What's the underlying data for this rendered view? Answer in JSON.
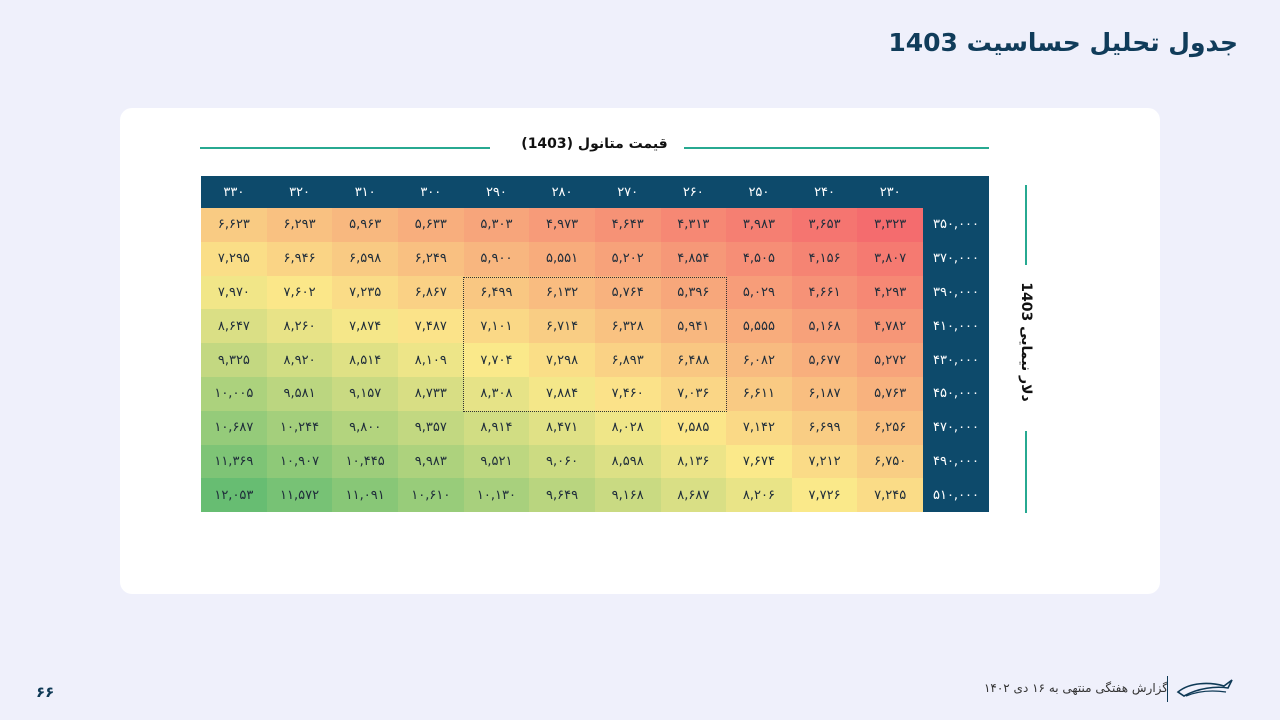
{
  "page": {
    "title": "جدول تحلیل حساسیت 1403",
    "page_number": "۶۶",
    "footer_text": "گزارش هفتگی منتهی به ۱۶ دی ۱۴۰۲"
  },
  "axes": {
    "top_label": "قیمت متانول (1403)",
    "side_label": "دلار نیمایی 1403"
  },
  "colors": {
    "header_bg": "#0d4a6b",
    "accent_line": "#27a991",
    "low": "#f46c6e",
    "mid": "#fbe98a",
    "high": "#67bd72"
  },
  "chart_data": {
    "type": "table",
    "columns": [
      "۲۳۰",
      "۲۴۰",
      "۲۵۰",
      "۲۶۰",
      "۲۷۰",
      "۲۸۰",
      "۲۹۰",
      "۳۰۰",
      "۳۱۰",
      "۳۲۰",
      "۳۳۰"
    ],
    "rows": [
      {
        "label": "۳۵۰,۰۰۰",
        "cells": [
          "۳,۳۲۳",
          "۳,۶۵۳",
          "۳,۹۸۳",
          "۴,۳۱۳",
          "۴,۶۴۳",
          "۴,۹۷۳",
          "۵,۳۰۳",
          "۵,۶۳۳",
          "۵,۹۶۳",
          "۶,۲۹۳",
          "۶,۶۲۳"
        ],
        "values": [
          3323,
          3653,
          3983,
          4313,
          4643,
          4973,
          5303,
          5633,
          5963,
          6293,
          6623
        ]
      },
      {
        "label": "۳۷۰,۰۰۰",
        "cells": [
          "۳,۸۰۷",
          "۴,۱۵۶",
          "۴,۵۰۵",
          "۴,۸۵۴",
          "۵,۲۰۲",
          "۵,۵۵۱",
          "۵,۹۰۰",
          "۶,۲۴۹",
          "۶,۵۹۸",
          "۶,۹۴۶",
          "۷,۲۹۵"
        ],
        "values": [
          3807,
          4156,
          4505,
          4854,
          5202,
          5551,
          5900,
          6249,
          6598,
          6946,
          7295
        ]
      },
      {
        "label": "۳۹۰,۰۰۰",
        "cells": [
          "۴,۲۹۳",
          "۴,۶۶۱",
          "۵,۰۲۹",
          "۵,۳۹۶",
          "۵,۷۶۴",
          "۶,۱۳۲",
          "۶,۴۹۹",
          "۶,۸۶۷",
          "۷,۲۳۵",
          "۷,۶۰۲",
          "۷,۹۷۰"
        ],
        "values": [
          4293,
          4661,
          5029,
          5396,
          5764,
          6132,
          6499,
          6867,
          7235,
          7602,
          7970
        ]
      },
      {
        "label": "۴۱۰,۰۰۰",
        "cells": [
          "۴,۷۸۲",
          "۵,۱۶۸",
          "۵,۵۵۵",
          "۵,۹۴۱",
          "۶,۳۲۸",
          "۶,۷۱۴",
          "۷,۱۰۱",
          "۷,۴۸۷",
          "۷,۸۷۴",
          "۸,۲۶۰",
          "۸,۶۴۷"
        ],
        "values": [
          4782,
          5168,
          5555,
          5941,
          6328,
          6714,
          7101,
          7487,
          7874,
          8260,
          8647
        ]
      },
      {
        "label": "۴۳۰,۰۰۰",
        "cells": [
          "۵,۲۷۲",
          "۵,۶۷۷",
          "۶,۰۸۲",
          "۶,۴۸۸",
          "۶,۸۹۳",
          "۷,۲۹۸",
          "۷,۷۰۴",
          "۸,۱۰۹",
          "۸,۵۱۴",
          "۸,۹۲۰",
          "۹,۳۲۵"
        ],
        "values": [
          5272,
          5677,
          6082,
          6488,
          6893,
          7298,
          7704,
          8109,
          8514,
          8920,
          9325
        ]
      },
      {
        "label": "۴۵۰,۰۰۰",
        "cells": [
          "۵,۷۶۳",
          "۶,۱۸۷",
          "۶,۶۱۱",
          "۷,۰۳۶",
          "۷,۴۶۰",
          "۷,۸۸۴",
          "۸,۳۰۸",
          "۸,۷۳۳",
          "۹,۱۵۷",
          "۹,۵۸۱",
          "۱۰,۰۰۵"
        ],
        "values": [
          5763,
          6187,
          6611,
          7036,
          7460,
          7884,
          8308,
          8733,
          9157,
          9581,
          10005
        ]
      },
      {
        "label": "۴۷۰,۰۰۰",
        "cells": [
          "۶,۲۵۶",
          "۶,۶۹۹",
          "۷,۱۴۲",
          "۷,۵۸۵",
          "۸,۰۲۸",
          "۸,۴۷۱",
          "۸,۹۱۴",
          "۹,۳۵۷",
          "۹,۸۰۰",
          "۱۰,۲۴۴",
          "۱۰,۶۸۷"
        ],
        "values": [
          6256,
          6699,
          7142,
          7585,
          8028,
          8471,
          8914,
          9357,
          9800,
          10244,
          10687
        ]
      },
      {
        "label": "۴۹۰,۰۰۰",
        "cells": [
          "۶,۷۵۰",
          "۷,۲۱۲",
          "۷,۶۷۴",
          "۸,۱۳۶",
          "۸,۵۹۸",
          "۹,۰۶۰",
          "۹,۵۲۱",
          "۹,۹۸۳",
          "۱۰,۴۴۵",
          "۱۰,۹۰۷",
          "۱۱,۳۶۹"
        ],
        "values": [
          6750,
          7212,
          7674,
          8136,
          8598,
          9060,
          9521,
          9983,
          10445,
          10907,
          11369
        ]
      },
      {
        "label": "۵۱۰,۰۰۰",
        "cells": [
          "۷,۲۴۵",
          "۷,۷۲۶",
          "۸,۲۰۶",
          "۸,۶۸۷",
          "۹,۱۶۸",
          "۹,۶۴۹",
          "۱۰,۱۳۰",
          "۱۰,۶۱۰",
          "۱۱,۰۹۱",
          "۱۱,۵۷۲",
          "۱۲,۰۵۳"
        ],
        "values": [
          7245,
          7726,
          8206,
          8687,
          9168,
          9649,
          10130,
          10610,
          11091,
          11572,
          12053
        ]
      }
    ],
    "highlight": {
      "rows": [
        "۳۹۰,۰۰۰",
        "۴۵۰,۰۰۰"
      ],
      "columns": [
        "۲۶۰",
        "۲۹۰"
      ]
    }
  }
}
